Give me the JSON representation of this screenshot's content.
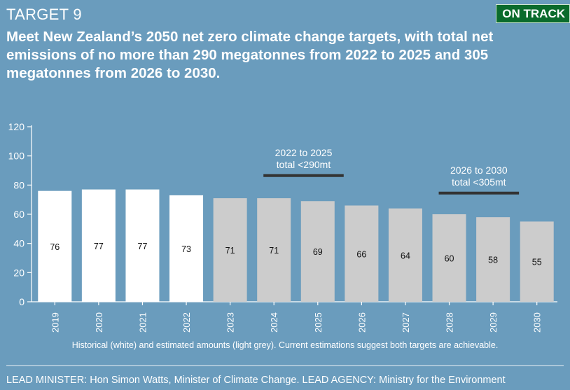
{
  "header": {
    "target_label": "TARGET 9",
    "status_badge": "ON TRACK",
    "headline": "Meet New Zealand’s 2050 net zero climate change targets, with total net emissions of no more than 290 megatonnes from 2022 to 2025 and 305 megatonnes from 2026 to 2030."
  },
  "chart_data": {
    "type": "bar",
    "categories": [
      "2019",
      "2020",
      "2021",
      "2022",
      "2023",
      "2024",
      "2025",
      "2026",
      "2027",
      "2028",
      "2029",
      "2030"
    ],
    "values": [
      76,
      77,
      77,
      73,
      71,
      71,
      69,
      66,
      64,
      60,
      58,
      55
    ],
    "series_kind": [
      "historical",
      "historical",
      "historical",
      "historical",
      "estimated",
      "estimated",
      "estimated",
      "estimated",
      "estimated",
      "estimated",
      "estimated",
      "estimated"
    ],
    "ylim": [
      0,
      120
    ],
    "yticks": [
      0,
      20,
      40,
      60,
      80,
      100,
      120
    ],
    "grid": false,
    "colors": {
      "historical": "#ffffff",
      "estimated": "#cccccc",
      "target_line": "#333333",
      "axis": "#ffffff"
    },
    "annotations": [
      {
        "line1": "2022 to 2025",
        "line2": "total <290mt",
        "from": "2024",
        "to": "2025",
        "y": 86.5
      },
      {
        "line1": "2026 to 2030",
        "line2": "total <305mt",
        "from": "2028",
        "to": "2029",
        "y": 74.5
      }
    ]
  },
  "footnote": "Historical (white) and estimated amounts (light grey). Current estimations suggest both targets are achievable.",
  "footer": "LEAD MINISTER: Hon Simon Watts, Minister of Climate Change. LEAD AGENCY: Ministry for the Environment"
}
